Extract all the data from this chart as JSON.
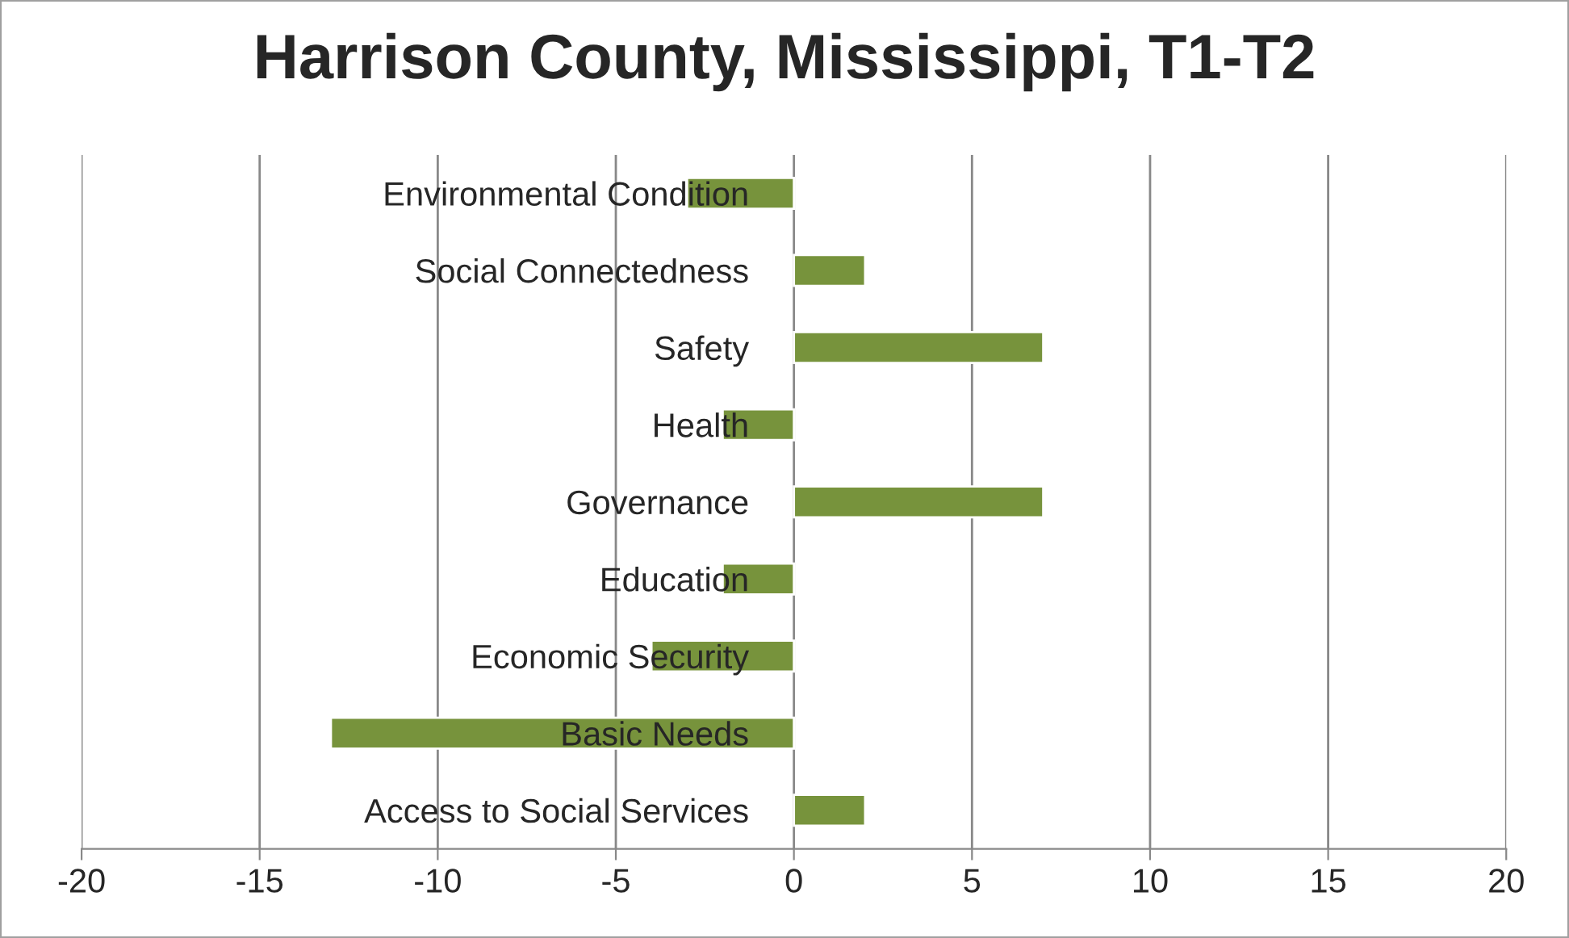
{
  "chart_data": {
    "type": "bar",
    "orientation": "horizontal",
    "title": "Harrison County, Mississippi, T1-T2",
    "categories": [
      "Environmental Condition",
      "Social Connectedness",
      "Safety",
      "Health",
      "Governance",
      "Education",
      "Economic Security",
      "Basic Needs",
      "Access to Social Services"
    ],
    "values": [
      -3,
      2,
      7,
      -2,
      7,
      -2,
      -4,
      -13,
      2
    ],
    "color": "#77933c",
    "xlim": [
      -20,
      20
    ],
    "xticks": [
      -20,
      -15,
      -10,
      -5,
      0,
      5,
      10,
      15,
      20
    ],
    "grid": "x"
  }
}
